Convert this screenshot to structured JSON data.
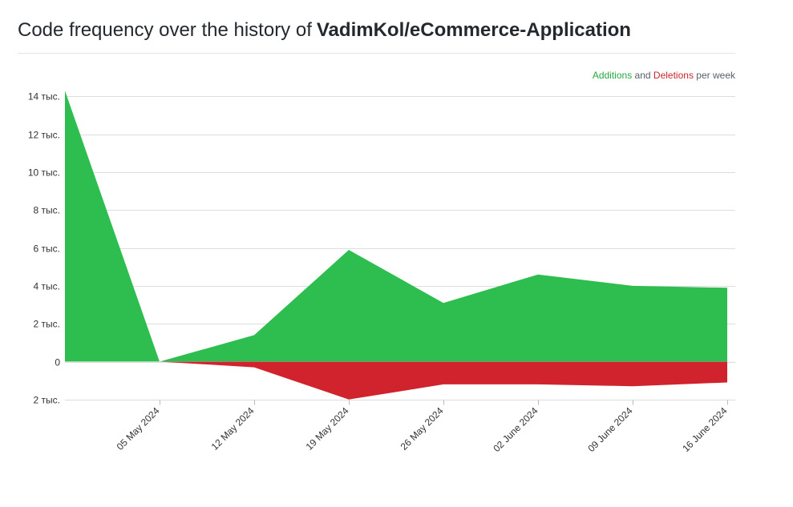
{
  "header": {
    "title_prefix": "Code frequency over the history of",
    "repo": "VadimKol/eCommerce-Application"
  },
  "legend": {
    "additions": "Additions",
    "and": "and",
    "deletions": "Deletions",
    "suffix": "per week"
  },
  "colors": {
    "additions": "#2ebd4f",
    "deletions": "#d0232e",
    "grid": "#dddddd",
    "axis_text": "#333333"
  },
  "chart_data": {
    "type": "area",
    "title": "Code frequency over the history of VadimKol/eCommerce-Application",
    "x": [
      "2024-04-28",
      "2024-05-05",
      "2024-05-12",
      "2024-05-19",
      "2024-05-26",
      "2024-06-02",
      "2024-06-09",
      "2024-06-16"
    ],
    "x_tick_labels": [
      "05 May 2024",
      "12 May 2024",
      "19 May 2024",
      "26 May 2024",
      "02 June 2024",
      "09 June 2024",
      "16 June 2024"
    ],
    "series": [
      {
        "name": "Additions",
        "values": [
          14300,
          0,
          1400,
          5900,
          3100,
          4600,
          4000,
          3900
        ]
      },
      {
        "name": "Deletions",
        "values": [
          0,
          0,
          -300,
          -2000,
          -1200,
          -1200,
          -1300,
          -1100
        ]
      }
    ],
    "y_ticks": [
      14000,
      12000,
      10000,
      8000,
      6000,
      4000,
      2000,
      0,
      -2000
    ],
    "y_tick_labels": [
      "14 тыс.",
      "12 тыс.",
      "10 тыс.",
      "8 тыс.",
      "6 тыс.",
      "4 тыс.",
      "2 тыс.",
      "0",
      "2 тыс."
    ],
    "ylim": [
      -2000,
      14300
    ],
    "grid": true,
    "legend_position": "top-right"
  }
}
